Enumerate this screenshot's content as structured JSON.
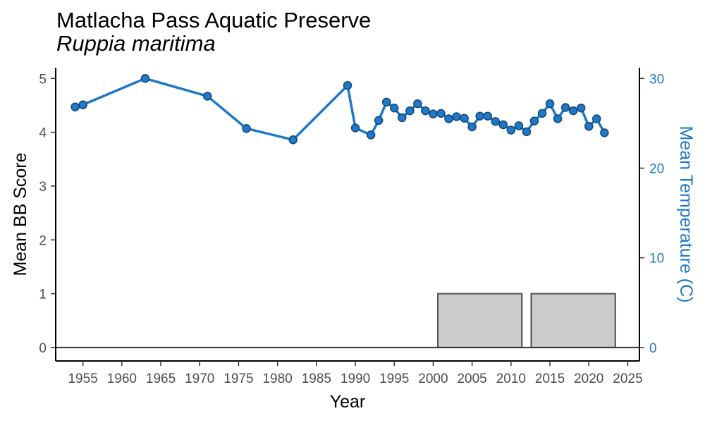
{
  "chart_data": {
    "type": "line",
    "title": "Matlacha Pass Aquatic Preserve",
    "subtitle": "Ruppia maritima",
    "xlabel": "Year",
    "ylabel": "Mean BB Score",
    "y2label": "Mean Temperature (C)",
    "xlim": [
      1951.5,
      2026.5
    ],
    "ylim": [
      -0.25,
      5.2
    ],
    "y2lim": [
      -1.5,
      31.2
    ],
    "x_ticks": [
      "1955",
      "1960",
      "1965",
      "1970",
      "1975",
      "1980",
      "1985",
      "1990",
      "1995",
      "2000",
      "2005",
      "2010",
      "2015",
      "2020",
      "2025"
    ],
    "y_ticks": [
      "0",
      "1",
      "2",
      "3",
      "4",
      "5"
    ],
    "y2_ticks": [
      "0",
      "10",
      "20",
      "30"
    ],
    "grid": false,
    "series": [
      {
        "kind": "line",
        "color": "#1f78c8",
        "x": [
          1954,
          1955,
          1963,
          1971,
          1976,
          1982,
          1989,
          1990,
          1992,
          1993,
          1994,
          1995,
          1996,
          1997,
          1998,
          1999,
          2000,
          2001,
          2002,
          2003,
          2004,
          2005,
          2006,
          2007,
          2008,
          2009,
          2010,
          2011,
          2012,
          2013,
          2014,
          2015,
          2016,
          2017,
          2018,
          2019,
          2020,
          2021,
          2022
        ],
        "y": [
          4.47,
          4.51,
          5.0,
          4.67,
          4.07,
          3.86,
          4.87,
          4.08,
          3.95,
          4.22,
          4.56,
          4.45,
          4.27,
          4.4,
          4.53,
          4.4,
          4.34,
          4.35,
          4.25,
          4.29,
          4.26,
          4.1,
          4.3,
          4.3,
          4.2,
          4.14,
          4.04,
          4.12,
          4.01,
          4.21,
          4.35,
          4.53,
          4.25,
          4.46,
          4.4,
          4.45,
          4.11,
          4.25,
          3.99
        ]
      },
      {
        "kind": "bar",
        "axis": "y2",
        "fill": "#cccccc",
        "stroke": "#4d4d4d",
        "x": [
          2006,
          2018
        ],
        "width": 10.8,
        "values": [
          6,
          6
        ]
      }
    ]
  }
}
